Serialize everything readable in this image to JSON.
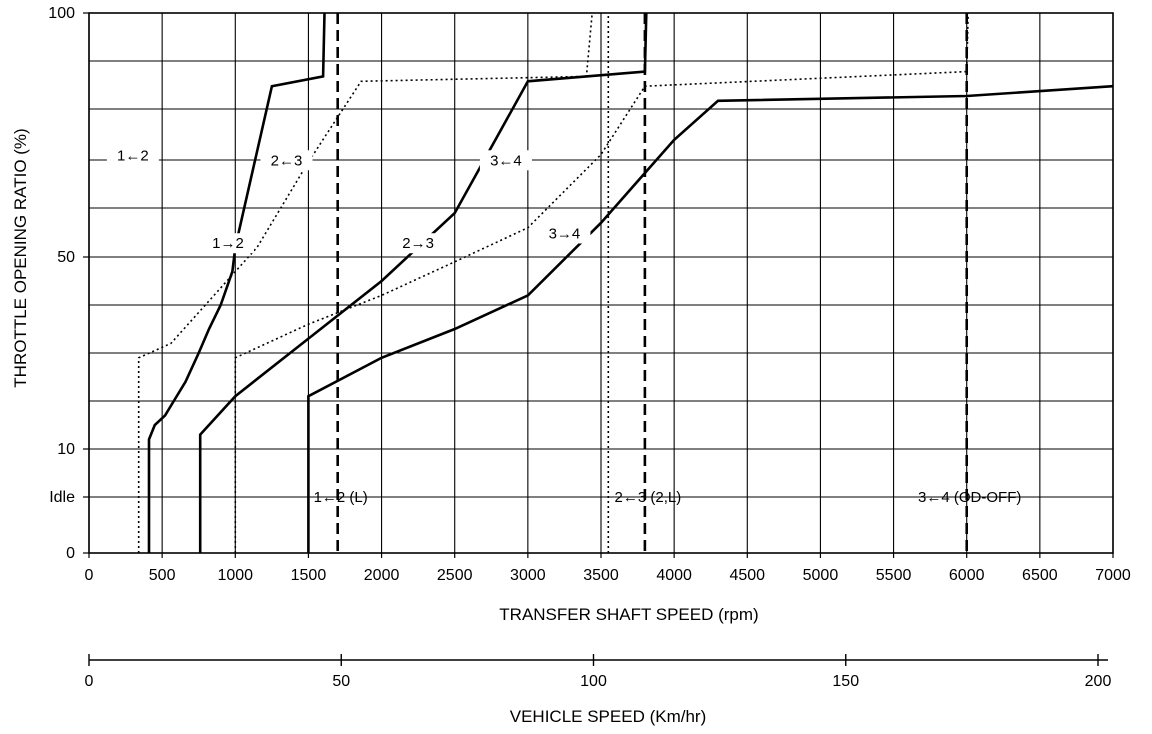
{
  "chart_data": {
    "type": "line",
    "title": "",
    "xlabel": "TRANSFER SHAFT SPEED (rpm)",
    "ylabel": "THROTTLE OPENING RATIO (%)",
    "x2label": "VEHICLE SPEED (Km/hr)",
    "xlim": [
      0,
      7000
    ],
    "x2lim": [
      0,
      200
    ],
    "xticks": [
      0,
      500,
      1000,
      1500,
      2000,
      2500,
      3000,
      3500,
      4000,
      4500,
      5000,
      5500,
      6000,
      6500,
      7000
    ],
    "x2ticks": [
      0,
      50,
      100,
      150,
      200
    ],
    "yticks": [
      {
        "label": "100",
        "value": 100
      },
      {
        "label": "50",
        "value": 50
      },
      {
        "label": "10",
        "value": 10
      },
      {
        "label": "Idle",
        "value": 6
      },
      {
        "label": "0",
        "value": 0
      }
    ],
    "grid": true,
    "legend": "none",
    "series": [
      {
        "name": "1→2",
        "style": "solid",
        "points": [
          [
            410,
            0
          ],
          [
            410,
            12
          ],
          [
            450,
            15
          ],
          [
            520,
            17
          ],
          [
            580,
            20
          ],
          [
            660,
            24
          ],
          [
            750,
            30
          ],
          [
            820,
            35
          ],
          [
            900,
            40
          ],
          [
            980,
            47
          ],
          [
            1000,
            52
          ],
          [
            1250,
            85
          ],
          [
            1600,
            87
          ],
          [
            1610,
            100
          ]
        ]
      },
      {
        "name": "1←2",
        "style": "dotted",
        "points": [
          [
            340,
            0
          ],
          [
            340,
            29
          ],
          [
            560,
            32
          ],
          [
            1150,
            52
          ],
          [
            1490,
            69
          ],
          [
            1620,
            75
          ],
          [
            1860,
            86
          ],
          [
            3400,
            87
          ],
          [
            3440,
            100
          ]
        ]
      },
      {
        "name": "2→3",
        "style": "solid",
        "points": [
          [
            760,
            0
          ],
          [
            760,
            13
          ],
          [
            1000,
            21
          ],
          [
            1500,
            33
          ],
          [
            2000,
            45
          ],
          [
            2500,
            59
          ],
          [
            3000,
            86
          ],
          [
            3800,
            88
          ],
          [
            3810,
            100
          ]
        ]
      },
      {
        "name": "2←3",
        "style": "dotted",
        "points": [
          [
            1000,
            0
          ],
          [
            1000,
            29
          ],
          [
            1500,
            36
          ],
          [
            2000,
            42
          ],
          [
            2500,
            49
          ],
          [
            3000,
            56
          ],
          [
            3500,
            71
          ],
          [
            3800,
            85
          ],
          [
            6000,
            88
          ],
          [
            6010,
            100
          ]
        ]
      },
      {
        "name": "3→4",
        "style": "solid",
        "points": [
          [
            1500,
            0
          ],
          [
            1500,
            21
          ],
          [
            2000,
            29
          ],
          [
            2500,
            35
          ],
          [
            3000,
            42
          ],
          [
            3500,
            57
          ],
          [
            4000,
            74
          ],
          [
            4300,
            82
          ],
          [
            6000,
            83
          ],
          [
            7000,
            85
          ]
        ]
      },
      {
        "name": "3←4",
        "style": "dotted",
        "points": [
          [
            3550,
            0
          ],
          [
            3550,
            100
          ]
        ]
      }
    ],
    "fixed_lines": [
      {
        "label": "1←2 (L)",
        "x": 1700
      },
      {
        "label": "2←3 (2,L)",
        "x": 3800
      },
      {
        "label": "3←4 (OD-OFF)",
        "x": 6000
      }
    ],
    "annotations": [
      {
        "text": "1←2",
        "x": 300,
        "y": 70
      },
      {
        "text": "2←3",
        "x": 1350,
        "y": 69
      },
      {
        "text": "3←4",
        "x": 2850,
        "y": 69
      },
      {
        "text": "1→2",
        "x": 950,
        "y": 52
      },
      {
        "text": "2→3",
        "x": 2250,
        "y": 52
      },
      {
        "text": "3→4",
        "x": 3250,
        "y": 54
      }
    ]
  }
}
